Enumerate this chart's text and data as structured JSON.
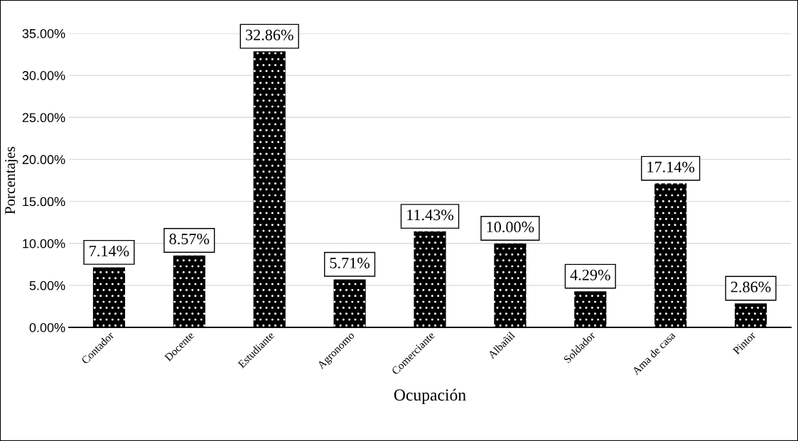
{
  "chart_data": {
    "type": "bar",
    "xlabel": "Ocupación",
    "ylabel": "Porcentajes",
    "categories": [
      "Contador",
      "Docente",
      "Estudiante",
      "Agronomo",
      "Comerciante",
      "Albañil",
      "Soldador",
      "Ama de casa",
      "Pintor"
    ],
    "values": [
      7.14,
      8.57,
      32.86,
      5.71,
      11.43,
      10.0,
      4.29,
      17.14,
      2.86
    ],
    "value_labels": [
      "7.14%",
      "8.57%",
      "32.86%",
      "5.71%",
      "11.43%",
      "10.00%",
      "4.29%",
      "17.14%",
      "2.86%"
    ],
    "color": "#000000",
    "ylim": [
      0,
      35
    ],
    "yticks": [
      {
        "value": 0,
        "label": "0.00%"
      },
      {
        "value": 5,
        "label": "5.00%"
      },
      {
        "value": 10,
        "label": "10.00%"
      },
      {
        "value": 15,
        "label": "15.00%"
      },
      {
        "value": 20,
        "label": "20.00%"
      },
      {
        "value": 25,
        "label": "25.00%"
      },
      {
        "value": 30,
        "label": "30.00%"
      },
      {
        "value": 35,
        "label": "35.00%"
      }
    ],
    "grid": "y",
    "legend": false
  }
}
